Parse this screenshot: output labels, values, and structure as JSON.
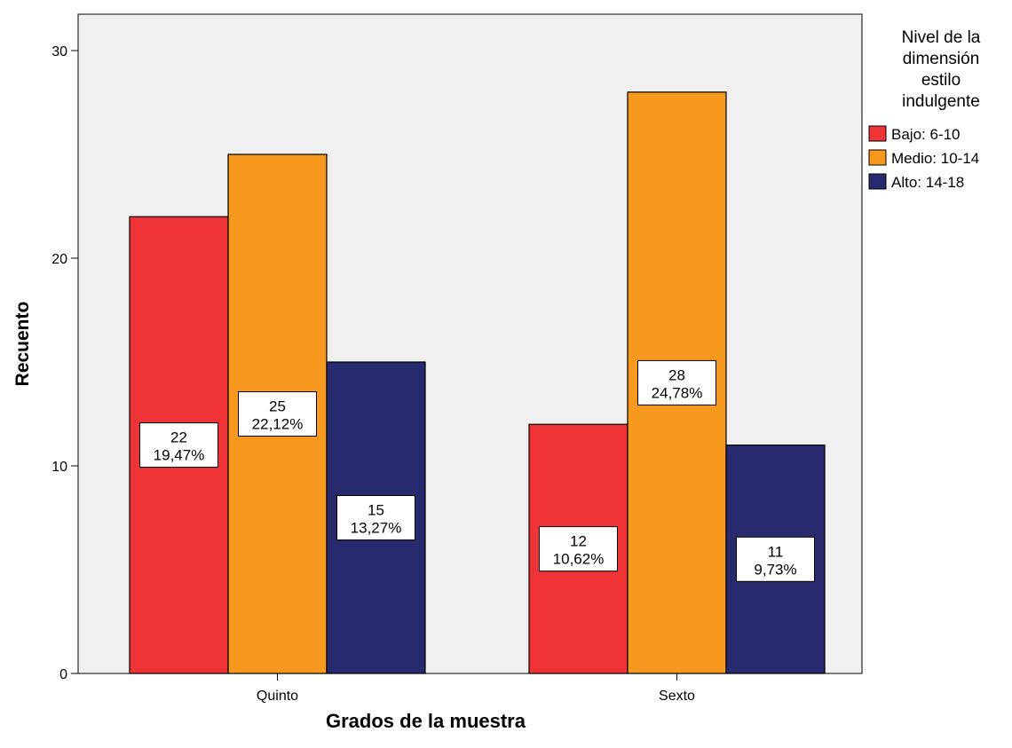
{
  "chart_data": {
    "type": "bar",
    "title": "",
    "xlabel": "Grados de la muestra",
    "ylabel": "Recuento",
    "ylim": [
      0,
      30
    ],
    "yticks": [
      0,
      10,
      20,
      30
    ],
    "grid": false,
    "categories": [
      "Quinto",
      "Sexto"
    ],
    "series": [
      {
        "name": "Bajo: 6-10",
        "color": "#ef3438",
        "values": [
          22,
          12
        ],
        "percent_labels": [
          "19,47%",
          "10,62%"
        ]
      },
      {
        "name": "Medio: 10-14",
        "color": "#f7991f",
        "values": [
          25,
          28
        ],
        "percent_labels": [
          "22,12%",
          "24,78%"
        ]
      },
      {
        "name": "Alto: 14-18",
        "color": "#282a6e",
        "values": [
          15,
          11
        ],
        "percent_labels": [
          "13,27%",
          "9,73%"
        ]
      }
    ],
    "legend": {
      "placement": "top-right",
      "title_lines": [
        "Nivel de la",
        "dimensión",
        "estilo",
        "indulgente"
      ]
    },
    "plot_background": "#f0f0f0"
  }
}
